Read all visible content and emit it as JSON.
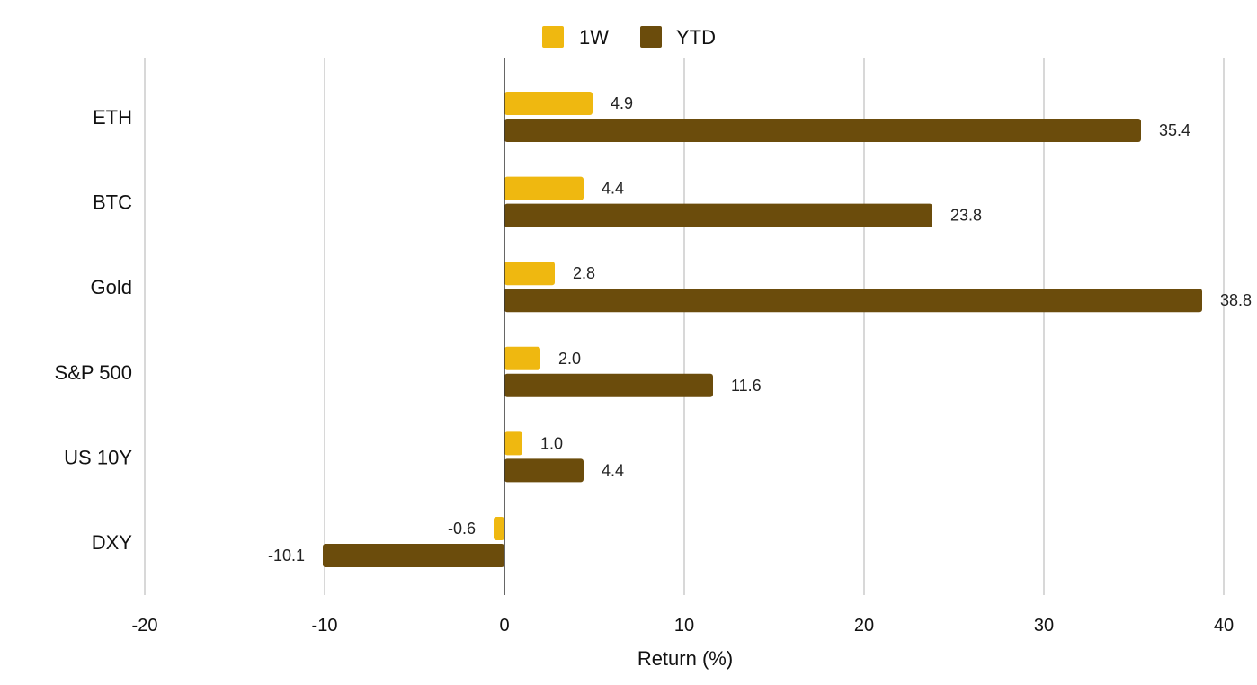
{
  "chart_data": {
    "type": "bar",
    "orientation": "horizontal",
    "categories": [
      "ETH",
      "BTC",
      "Gold",
      "S&P 500",
      "US 10Y",
      "DXY"
    ],
    "series": [
      {
        "name": "1W",
        "color": "#EFB810",
        "values": [
          4.9,
          4.4,
          2.8,
          2.0,
          1.0,
          -0.6
        ],
        "labels": [
          "4.9",
          "4.4",
          "2.8",
          "2.0",
          "1.0",
          "-0.6"
        ]
      },
      {
        "name": "YTD",
        "color": "#6B4C0C",
        "values": [
          35.4,
          23.8,
          38.8,
          11.6,
          4.4,
          -10.1
        ],
        "labels": [
          "35.4",
          "23.8",
          "38.8",
          "11.6",
          "4.4",
          "-10.1"
        ]
      }
    ],
    "xlabel": "Return (%)",
    "ylabel": "",
    "xlim": [
      -20,
      40
    ],
    "xticks": [
      -20,
      -10,
      0,
      10,
      20,
      30,
      40
    ],
    "xtick_labels": [
      "-20",
      "-10",
      "0",
      "10",
      "20",
      "30",
      "40"
    ],
    "grid": "vertical",
    "legend_position": "top-center"
  }
}
